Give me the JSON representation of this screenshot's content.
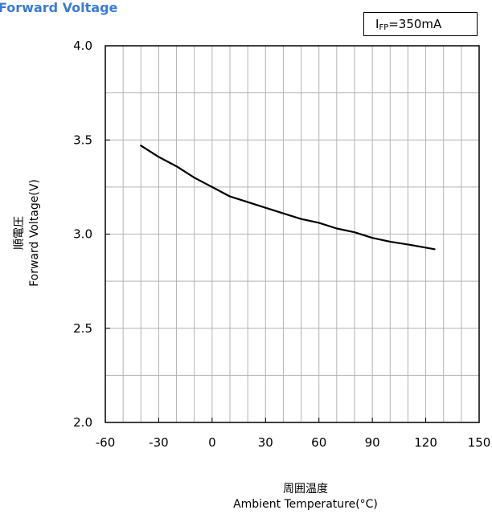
{
  "title": "Forward Voltage",
  "condition": {
    "prefix": "I",
    "subscript": "FP",
    "suffix": "=350mA"
  },
  "ylabel_jp": "順電圧",
  "ylabel_en": "Forward Voltage(V)",
  "xlabel_jp": "周囲温度",
  "xlabel_en": "Ambient Temperature(°C)",
  "colors": {
    "title": "#3a7ad8",
    "line": "#000000",
    "grid": "#b3b3b3"
  },
  "chart_data": {
    "type": "line",
    "title": "Forward Voltage",
    "xlabel": "周囲温度 Ambient Temperature(°C)",
    "ylabel": "順電圧 Forward Voltage(V)",
    "xlim": [
      -60,
      150
    ],
    "ylim": [
      2.0,
      4.0
    ],
    "xticks": [
      -60,
      -30,
      0,
      30,
      60,
      90,
      120,
      150
    ],
    "xtick_labels": [
      "-60",
      "-30",
      "0",
      "30",
      "60",
      "90",
      "120",
      "150"
    ],
    "yticks": [
      2.0,
      2.5,
      3.0,
      3.5,
      4.0
    ],
    "ytick_labels": [
      "2.0",
      "2.5",
      "3.0",
      "3.5",
      "4.0"
    ],
    "x_minor_step": 10,
    "y_minor_step": 0.25,
    "grid": true,
    "series": [
      {
        "x": [
          -40,
          -30,
          -20,
          -10,
          0,
          10,
          20,
          30,
          40,
          50,
          60,
          70,
          80,
          90,
          100,
          110,
          125
        ],
        "y": [
          3.47,
          3.41,
          3.36,
          3.3,
          3.25,
          3.2,
          3.17,
          3.14,
          3.11,
          3.08,
          3.06,
          3.03,
          3.01,
          2.98,
          2.96,
          2.945,
          2.92
        ]
      }
    ]
  }
}
